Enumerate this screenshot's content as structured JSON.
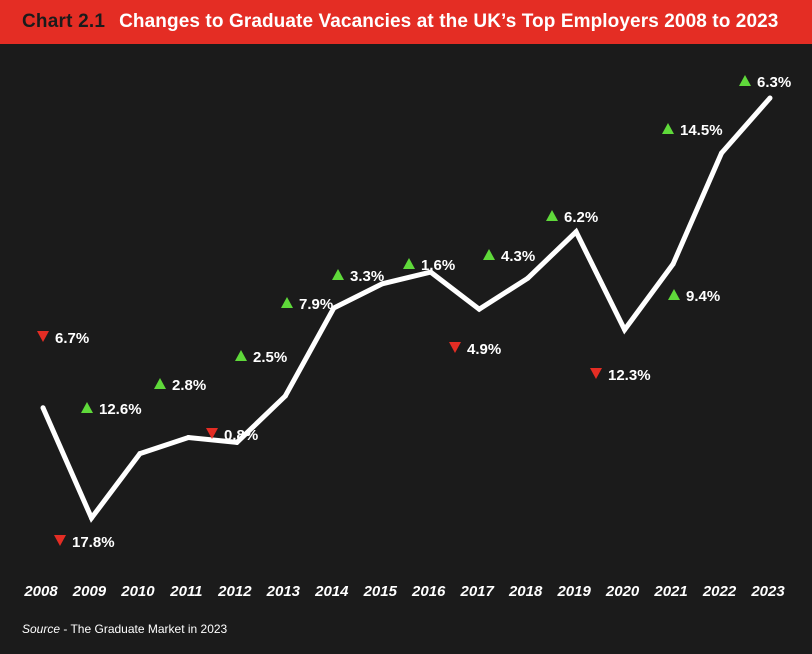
{
  "header": {
    "chart_number": "Chart 2.1",
    "title": "Changes to Graduate Vacancies at the UK’s Top Employers 2008 to 2023"
  },
  "source": {
    "label": "Source",
    "text": " - The Graduate Market in 2023"
  },
  "colors": {
    "header_bg": "#e42d24",
    "background": "#1b1b1b",
    "line": "#ffffff",
    "up": "#5fd93a",
    "down": "#e42d24",
    "text": "#ffffff"
  },
  "chart_data": {
    "type": "line",
    "title": "Changes to Graduate Vacancies at the UK’s Top Employers 2008 to 2023",
    "x": [
      "2008",
      "2009",
      "2010",
      "2011",
      "2012",
      "2013",
      "2014",
      "2015",
      "2016",
      "2017",
      "2018",
      "2019",
      "2020",
      "2021",
      "2022",
      "2023"
    ],
    "series": [
      {
        "values": [
          100,
          82.2,
          92.6,
          95.2,
          94.4,
          101.9,
          116.1,
          120.0,
          121.9,
          115.9,
          120.9,
          128.4,
          112.6,
          123.2,
          141.1,
          150.0
        ]
      }
    ],
    "change_labels": [
      {
        "year": "2008",
        "direction": "down",
        "text": "6.7%"
      },
      {
        "year": "2009",
        "direction": "down",
        "text": "17.8%"
      },
      {
        "year": "2010",
        "direction": "up",
        "text": "12.6%"
      },
      {
        "year": "2011",
        "direction": "up",
        "text": "2.8%"
      },
      {
        "year": "2012",
        "direction": "down",
        "text": "0.8%"
      },
      {
        "year": "2012",
        "direction": "up",
        "text": "2.5%"
      },
      {
        "year": "2013",
        "direction": "up",
        "text": "7.9%"
      },
      {
        "year": "2014",
        "direction": "up",
        "text": "3.3%"
      },
      {
        "year": "2015",
        "direction": "up",
        "text": "1.6%"
      },
      {
        "year": "2016",
        "direction": "down",
        "text": "4.9%"
      },
      {
        "year": "2017",
        "direction": "up",
        "text": "4.3%"
      },
      {
        "year": "2018",
        "direction": "up",
        "text": "6.2%"
      },
      {
        "year": "2019",
        "direction": "down",
        "text": "12.3%"
      },
      {
        "year": "2020",
        "direction": "up",
        "text": "9.4%"
      },
      {
        "year": "2021",
        "direction": "up",
        "text": "14.5%"
      },
      {
        "year": "2022",
        "direction": "up",
        "text": "6.3%"
      }
    ],
    "grid": false,
    "legend": "none"
  }
}
